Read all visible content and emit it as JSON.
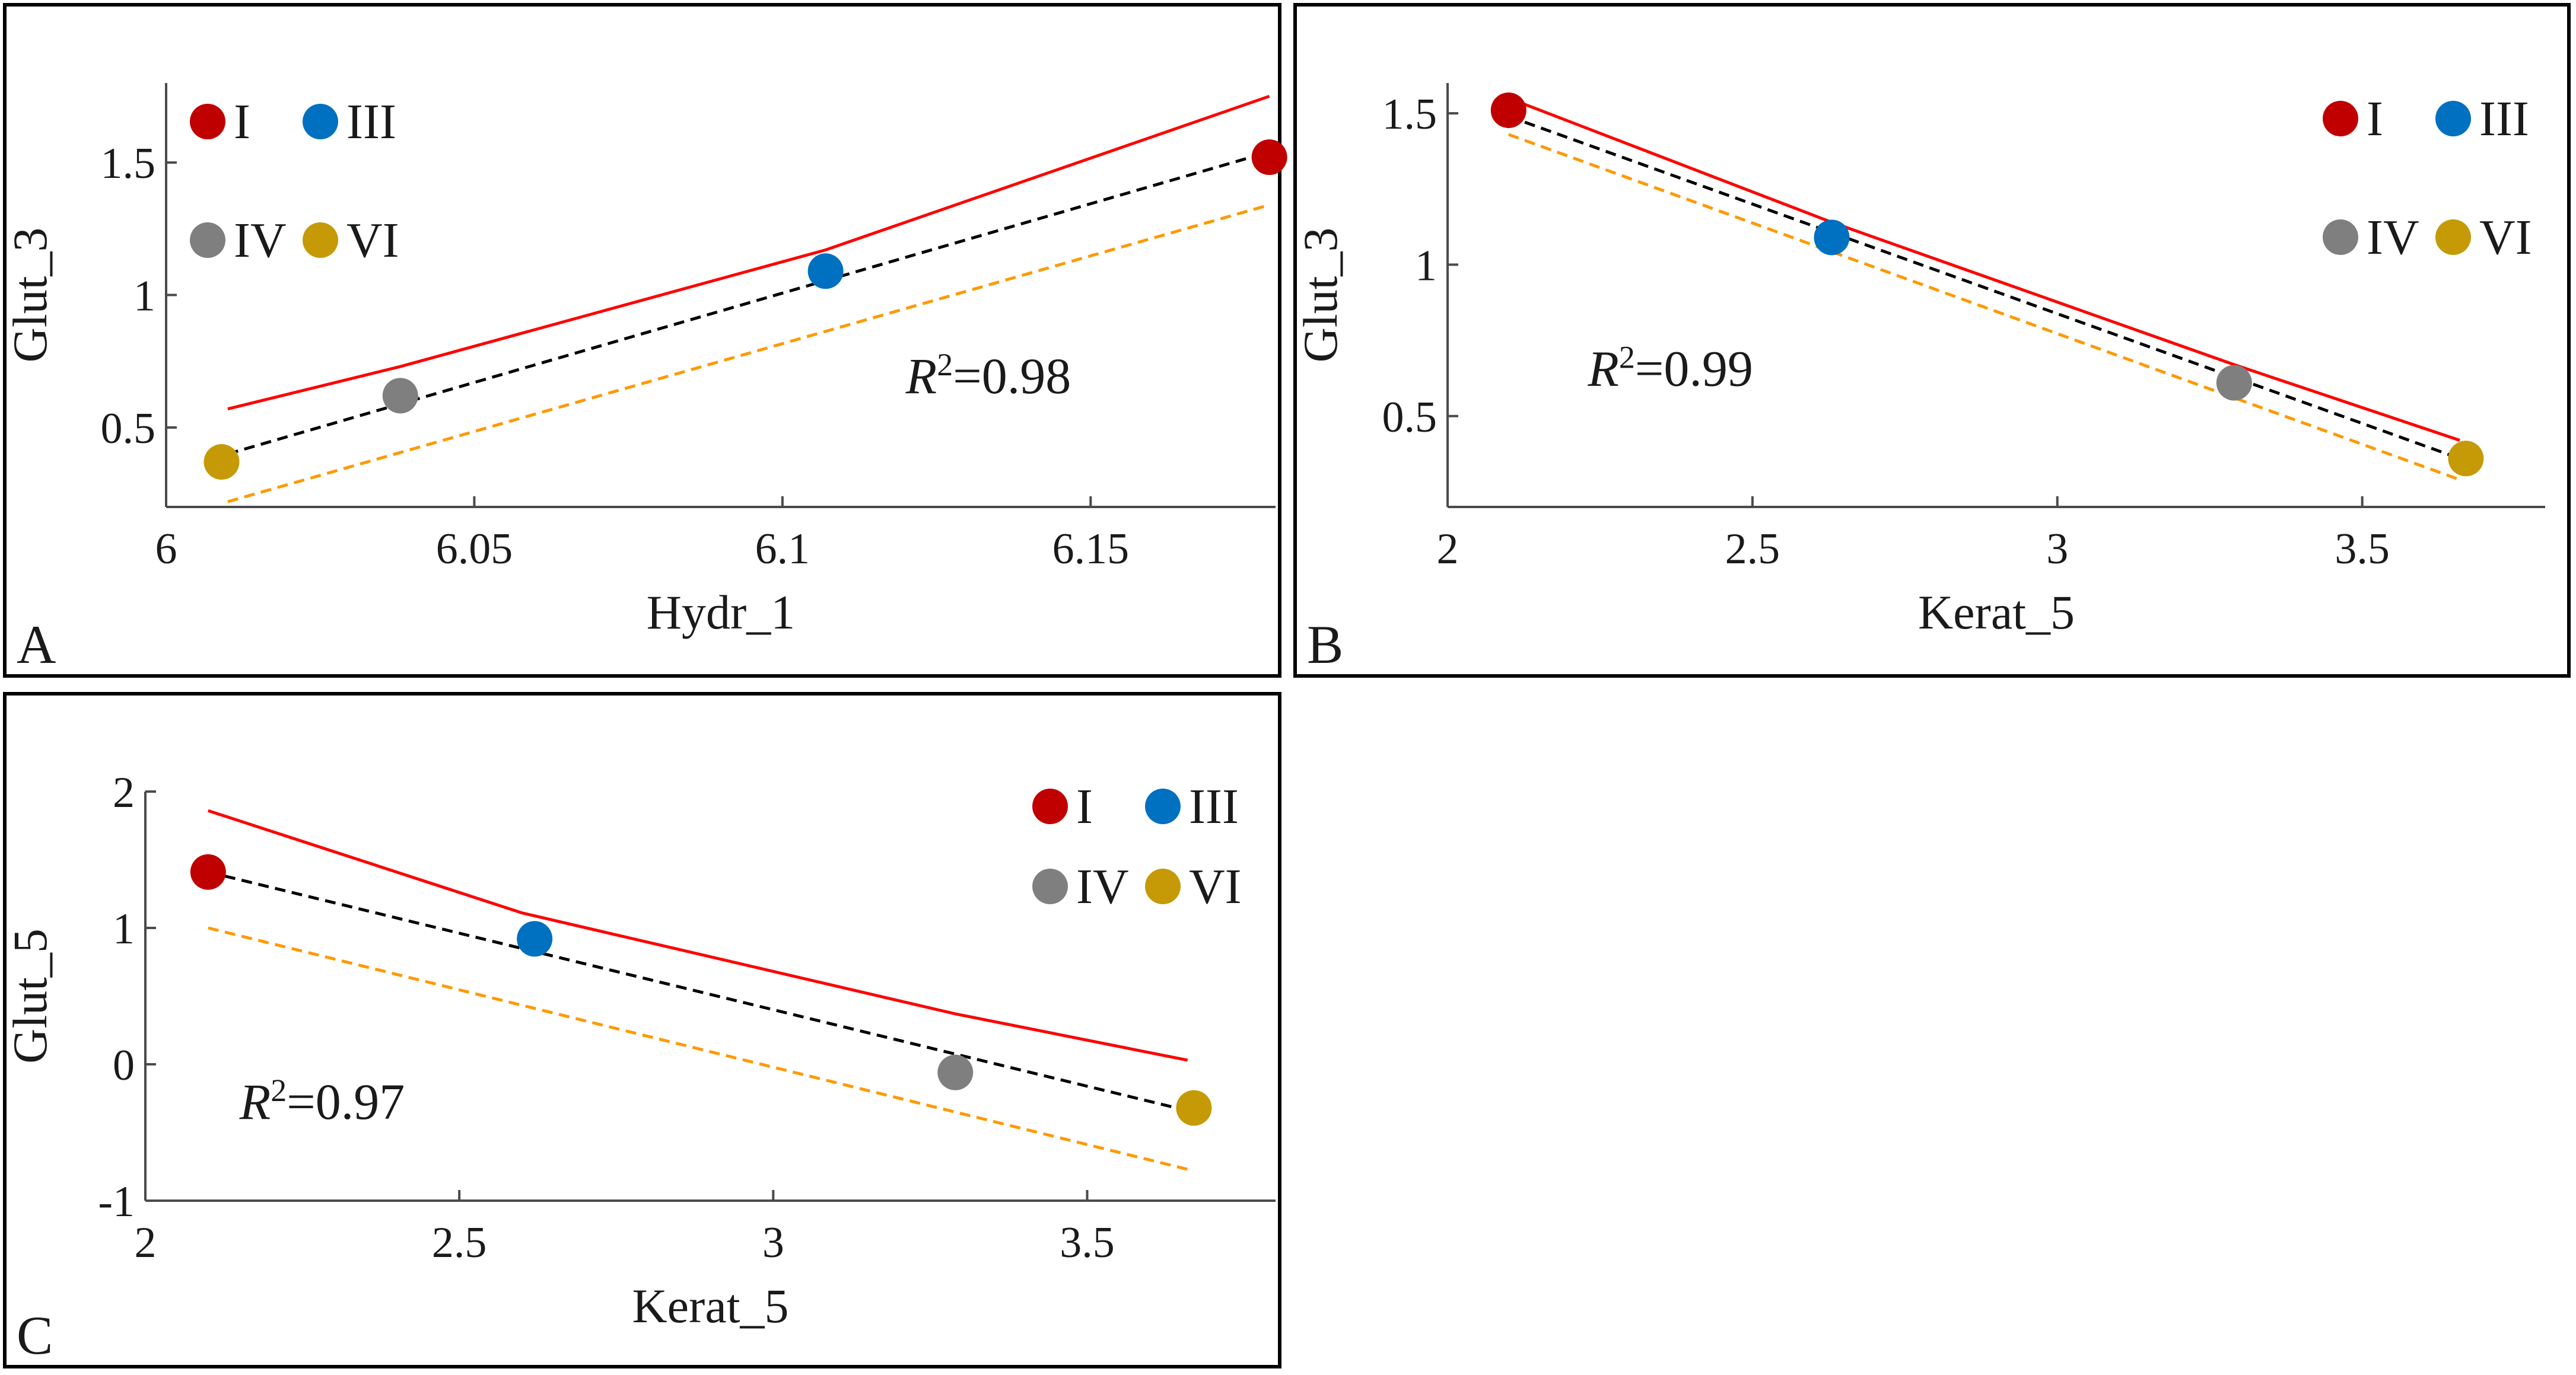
{
  "colors": {
    "I": "#c00000",
    "III": "#0070c0",
    "IV": "#7f7f7f",
    "VI": "#c59a06",
    "upper_band": "#ff0000",
    "fit_line": "#000000",
    "lower_band": "#ff9900"
  },
  "chart_data": [
    {
      "type": "scatter",
      "panel_label": "A",
      "xlabel": "Hydr_1",
      "ylabel": "Glut_3",
      "xlim": [
        6.0,
        6.18
      ],
      "ylim": [
        0.2,
        1.8
      ],
      "xticks": [
        6,
        6.05,
        6.1,
        6.15
      ],
      "xtick_labels": [
        "6",
        "6.05",
        "6.1",
        "6.15"
      ],
      "yticks": [
        0.5,
        1,
        1.5
      ],
      "ytick_labels": [
        "0.5",
        "1",
        "1.5"
      ],
      "legend": {
        "placement": "top-left",
        "entries": [
          "I",
          "III",
          "IV",
          "VI"
        ]
      },
      "r2": {
        "symbol": "R",
        "superscript": "2",
        "value": "=0.98",
        "x": 6.12,
        "y": 0.63
      },
      "points": [
        {
          "label": "I",
          "x": 6.179,
          "y": 1.52
        },
        {
          "label": "III",
          "x": 6.107,
          "y": 1.09
        },
        {
          "label": "IV",
          "x": 6.038,
          "y": 0.62
        },
        {
          "label": "VI",
          "x": 6.009,
          "y": 0.37
        }
      ],
      "lines": [
        {
          "name": "upper",
          "style": "solid",
          "x": [
            6.01,
            6.038,
            6.107,
            6.179
          ],
          "y": [
            0.57,
            0.73,
            1.17,
            1.75
          ]
        },
        {
          "name": "fit",
          "style": "dashed",
          "x": [
            6.01,
            6.179
          ],
          "y": [
            0.4,
            1.54
          ]
        },
        {
          "name": "lower",
          "style": "dashed",
          "x": [
            6.01,
            6.179
          ],
          "y": [
            0.22,
            1.34
          ]
        }
      ]
    },
    {
      "type": "scatter",
      "panel_label": "B",
      "xlabel": "Kerat_5",
      "ylabel": "Glut_3",
      "xlim": [
        2.0,
        3.8
      ],
      "ylim": [
        0.2,
        1.6
      ],
      "xticks": [
        2,
        2.5,
        3,
        3.5
      ],
      "xtick_labels": [
        "2",
        "2.5",
        "3",
        "3.5"
      ],
      "yticks": [
        0.5,
        1,
        1.5
      ],
      "ytick_labels": [
        "0.5",
        "1",
        "1.5"
      ],
      "legend": {
        "placement": "top-right",
        "entries": [
          "I",
          "III",
          "IV",
          "VI"
        ]
      },
      "r2": {
        "symbol": "R",
        "superscript": "2",
        "value": "=0.99",
        "x": 2.23,
        "y": 0.6
      },
      "points": [
        {
          "label": "I",
          "x": 2.1,
          "y": 1.51
        },
        {
          "label": "III",
          "x": 2.63,
          "y": 1.09
        },
        {
          "label": "IV",
          "x": 3.29,
          "y": 0.61
        },
        {
          "label": "VI",
          "x": 3.67,
          "y": 0.36
        }
      ],
      "lines": [
        {
          "name": "upper",
          "style": "solid",
          "x": [
            2.1,
            2.63,
            3.29,
            3.66
          ],
          "y": [
            1.55,
            1.14,
            0.67,
            0.42
          ]
        },
        {
          "name": "fit",
          "style": "dashed",
          "x": [
            2.1,
            3.66
          ],
          "y": [
            1.49,
            0.36
          ]
        },
        {
          "name": "lower",
          "style": "dashed",
          "x": [
            2.1,
            3.66
          ],
          "y": [
            1.43,
            0.29
          ]
        }
      ]
    },
    {
      "type": "scatter",
      "panel_label": "C",
      "xlabel": "Kerat_5",
      "ylabel": "Glut_5",
      "xlim": [
        2.0,
        3.8
      ],
      "ylim": [
        -1.0,
        2.0
      ],
      "xticks": [
        2,
        2.5,
        3,
        3.5
      ],
      "xtick_labels": [
        "2",
        "2.5",
        "3",
        "3.5"
      ],
      "yticks": [
        -1,
        0,
        1,
        2
      ],
      "ytick_labels": [
        "-1",
        "0",
        "1",
        "2"
      ],
      "legend": {
        "placement": "top-right",
        "entries": [
          "I",
          "III",
          "IV",
          "VI"
        ]
      },
      "r2": {
        "symbol": "R",
        "superscript": "2",
        "value": "=0.97",
        "x": 2.15,
        "y": -0.4
      },
      "points": [
        {
          "label": "I",
          "x": 2.1,
          "y": 1.41
        },
        {
          "label": "III",
          "x": 2.62,
          "y": 0.92
        },
        {
          "label": "IV",
          "x": 3.29,
          "y": -0.06
        },
        {
          "label": "VI",
          "x": 3.67,
          "y": -0.32
        }
      ],
      "lines": [
        {
          "name": "upper",
          "style": "solid",
          "x": [
            2.1,
            2.6,
            3.29,
            3.66
          ],
          "y": [
            1.86,
            1.11,
            0.37,
            0.03
          ]
        },
        {
          "name": "fit",
          "style": "dashed",
          "x": [
            2.1,
            3.66
          ],
          "y": [
            1.41,
            -0.34
          ]
        },
        {
          "name": "lower",
          "style": "dashed",
          "x": [
            2.1,
            3.66
          ],
          "y": [
            1.0,
            -0.77
          ]
        }
      ]
    }
  ]
}
